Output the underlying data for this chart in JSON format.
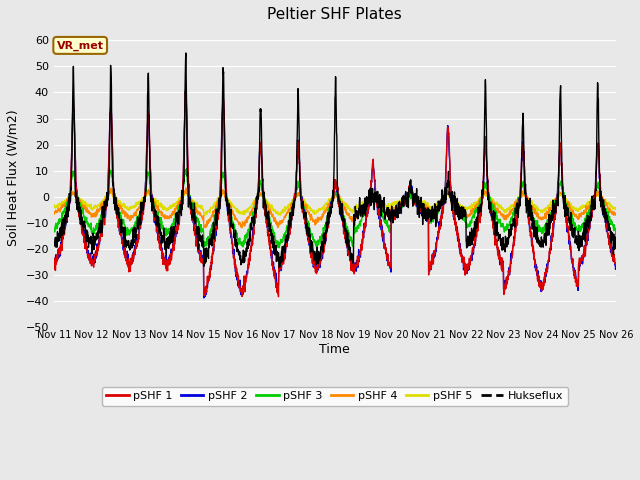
{
  "title": "Peltier SHF Plates",
  "ylabel": "Soil Heat Flux (W/m2)",
  "xlabel": "Time",
  "ylim": [
    -50,
    65
  ],
  "yticks": [
    -50,
    -40,
    -30,
    -20,
    -10,
    0,
    10,
    20,
    30,
    40,
    50,
    60
  ],
  "fig_bg_color": "#e8e8e8",
  "plot_bg_color": "#e8e8e8",
  "annotation_text": "VR_met",
  "colors": {
    "pSHF1": "#dd0000",
    "pSHF2": "#0000dd",
    "pSHF3": "#00cc00",
    "pSHF4": "#ff8800",
    "pSHF5": "#dddd00",
    "Hukseflux": "#000000"
  },
  "legend_labels": [
    "pSHF 1",
    "pSHF 2",
    "pSHF 3",
    "pSHF 4",
    "pSHF 5",
    "Hukseflux"
  ],
  "n_days": 15,
  "points_per_day": 144,
  "start_day": 11
}
